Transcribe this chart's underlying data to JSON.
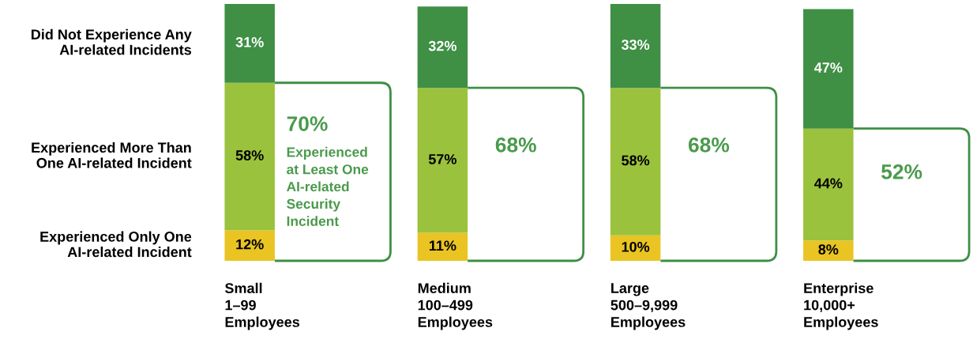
{
  "chart_data": {
    "type": "bar",
    "stacked": true,
    "categories": [
      "Small\n1–99\nEmployees",
      "Medium\n100–499\nEmployees",
      "Large\n500–9,999\nEmployees",
      "Enterprise\n10,000+\nEmployees"
    ],
    "series": [
      {
        "name": "Experienced Only One\nAI-related Incident",
        "color": "#eac422",
        "values": [
          12,
          11,
          10,
          8
        ],
        "value_labels": [
          "12%",
          "11%",
          "10%",
          "8%"
        ]
      },
      {
        "name": "Experienced More Than\nOne AI-related Incident",
        "color": "#9bc23c",
        "values": [
          58,
          57,
          58,
          44
        ],
        "value_labels": [
          "58%",
          "57%",
          "58%",
          "44%"
        ]
      },
      {
        "name": "Did Not Experience Any\nAI-related Incidents",
        "color": "#3f8f45",
        "values": [
          31,
          32,
          33,
          47
        ],
        "value_labels": [
          "31%",
          "32%",
          "33%",
          "47%"
        ]
      }
    ],
    "annotations": [
      "70%",
      "Experienced\nat Least One\nAI-related\nSecurity\nIncident",
      "68%",
      "68%",
      "52%"
    ]
  }
}
